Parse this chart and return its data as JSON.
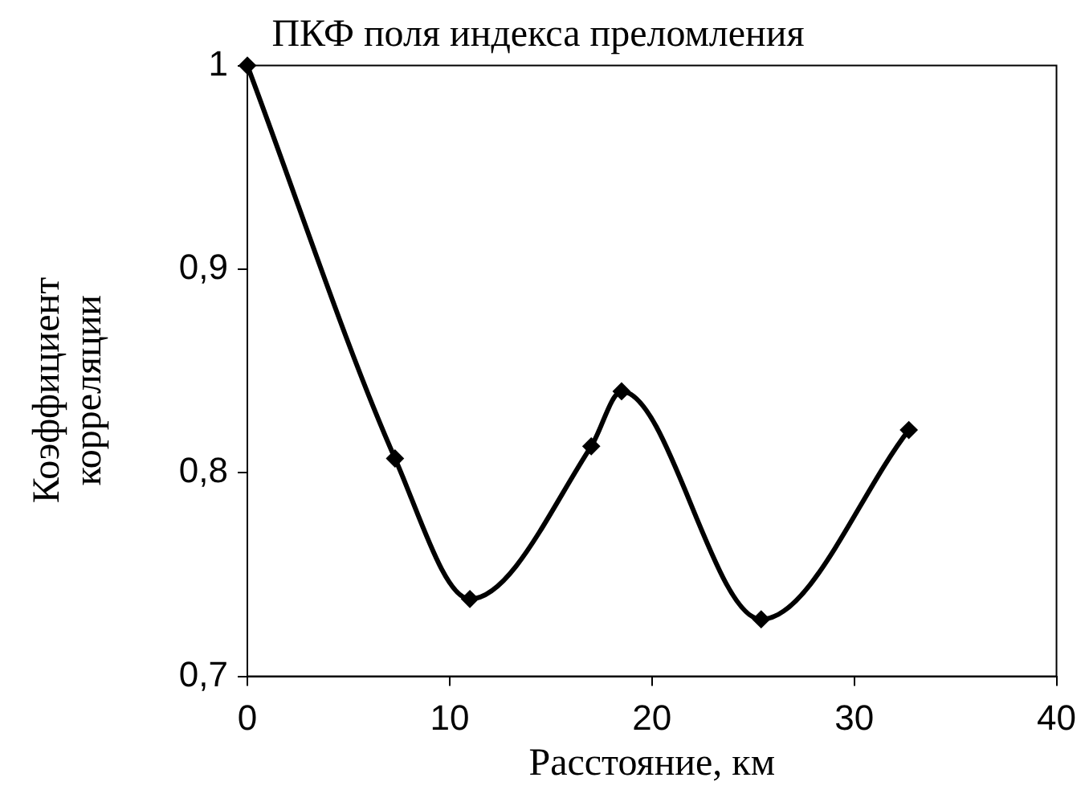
{
  "chart_data": {
    "type": "line",
    "title": "ПКФ поля индекса преломления",
    "xlabel": "Расстояние, км",
    "ylabel": "Коэффициент корреляции",
    "x": [
      0,
      7.3,
      11.0,
      17.0,
      18.5,
      25.4,
      32.7
    ],
    "series": [
      {
        "color": "#000000",
        "values": [
          1,
          0.807,
          0.738,
          0.813,
          0.84,
          0.728,
          0.821
        ]
      }
    ],
    "xlim": [
      0,
      40
    ],
    "xticks": [
      0,
      10,
      20,
      30,
      40
    ],
    "ylim": [
      0.7,
      1
    ],
    "yticks": [
      {
        "value": 0.7,
        "label": "0,7"
      },
      {
        "value": 0.8,
        "label": "0,8"
      },
      {
        "value": 0.9,
        "label": "0,9"
      },
      {
        "value": 1,
        "label": "1"
      }
    ],
    "grid": false,
    "legend": false,
    "marker": "diamond",
    "line_style": "solid"
  }
}
